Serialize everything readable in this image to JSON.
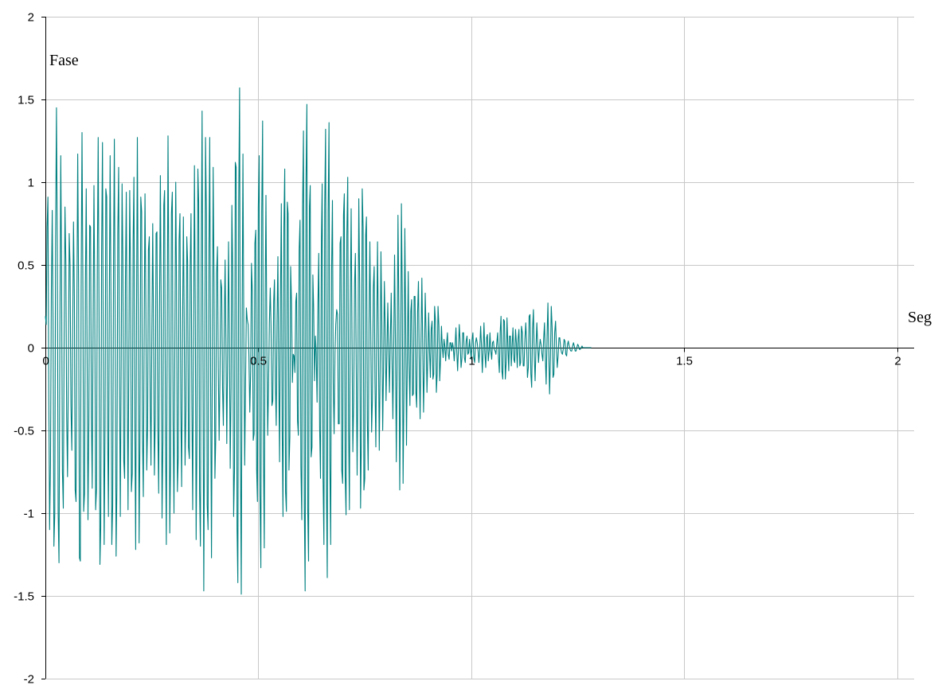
{
  "chart_data": {
    "type": "line",
    "title": "",
    "xlabel": "Seg",
    "ylabel": "Fase",
    "xlim": [
      0,
      2.04
    ],
    "ylim": [
      -2,
      2
    ],
    "x_ticks": [
      0,
      0.5,
      1,
      1.5,
      2
    ],
    "x_tick_labels": [
      "0",
      "0.5",
      "1",
      "1.5",
      "2"
    ],
    "y_ticks": [
      2,
      1.5,
      1,
      0.5,
      0,
      -0.5,
      -1,
      -1.5,
      -2
    ],
    "y_tick_labels": [
      "2",
      "1.5",
      "1",
      "0.5",
      "0",
      "-0.5",
      "-1",
      "-1.5",
      "-2"
    ],
    "grid": true,
    "legend": "none",
    "series": [
      {
        "color": "#008080",
        "x_start": 0,
        "x_step": 0.002,
        "y": [
          0.19,
          0.14,
          0.73,
          0.91,
          -0.3,
          -1.1,
          -0.7,
          0.34,
          0.83,
          0.16,
          -1.2,
          -1.0,
          0.65,
          1.45,
          0.57,
          -0.99,
          -1.3,
          0.06,
          1.16,
          0.49,
          -0.75,
          -0.97,
          -0.01,
          0.85,
          0.51,
          -0.41,
          -0.78,
          -0.13,
          0.69,
          0.5,
          -0.35,
          -0.62,
          0.05,
          0.76,
          0.31,
          -0.86,
          -0.93,
          0.3,
          1.17,
          0.37,
          -1.27,
          -1.29,
          0.36,
          1.3,
          0.36,
          -0.99,
          -0.88,
          0.4,
          0.96,
          -0.04,
          -1.04,
          -0.44,
          0.74,
          0.73,
          -0.42,
          -0.85,
          0.13,
          0.98,
          0.28,
          -0.98,
          -0.86,
          0.47,
          1.27,
          0.19,
          -1.31,
          -1.09,
          0.56,
          1.24,
          -0.01,
          -1.19,
          -0.48,
          0.96,
          0.91,
          -0.49,
          -1.02,
          0.19,
          1.16,
          0.26,
          -1.19,
          -0.96,
          0.54,
          1.26,
          0.07,
          -1.26,
          -0.84,
          0.69,
          1.09,
          -0.24,
          -1.02,
          -0.07,
          0.99,
          0.54,
          -0.68,
          -0.79,
          0.4,
          0.94,
          -0.17,
          -0.98,
          -0.07,
          0.95,
          0.42,
          -0.87,
          -0.76,
          0.65,
          1.03,
          -0.43,
          -1.22,
          0.15,
          1.27,
          0.2,
          -1.18,
          -0.58,
          0.91,
          0.82,
          -0.51,
          -0.9,
          0.14,
          0.93,
          0.25,
          -0.74,
          -0.47,
          0.59,
          0.67,
          -0.31,
          -0.71,
          0.07,
          0.75,
          0.15,
          -0.77,
          -0.42,
          0.69,
          0.7,
          -0.48,
          -0.88,
          0.22,
          1.04,
          0.17,
          -1.03,
          -0.56,
          0.86,
          0.95,
          -0.51,
          -1.19,
          0.09,
          1.28,
          0.33,
          -1.12,
          -0.71,
          0.81,
          0.94,
          -0.44,
          -1.0,
          0.04,
          1.0,
          0.36,
          -0.87,
          -0.66,
          0.65,
          0.81,
          -0.37,
          -0.84,
          0.09,
          0.79,
          0.18,
          -0.71,
          -0.38,
          0.67,
          0.52,
          -0.6,
          -0.67,
          0.48,
          0.81,
          -0.35,
          -0.98,
          0.13,
          1.1,
          0.16,
          -1.16,
          -0.51,
          1.08,
          0.88,
          -0.86,
          -1.2,
          0.52,
          1.43,
          -0.07,
          -1.47,
          -0.41,
          1.27,
          0.81,
          -0.95,
          -1.1,
          0.58,
          1.27,
          -0.2,
          -1.27,
          -0.13,
          1.09,
          0.39,
          -0.79,
          -0.56,
          0.45,
          0.61,
          -0.11,
          -0.56,
          -0.17,
          0.41,
          0.36,
          -0.25,
          -0.47,
          0.11,
          0.53,
          -0.02,
          -0.58,
          -0.04,
          0.64,
          0.11,
          -0.73,
          -0.24,
          0.86,
          0.44,
          -1.02,
          -0.74,
          1.12,
          1.09,
          -1.09,
          -1.42,
          0.89,
          1.57,
          -0.57,
          -1.49,
          0.21,
          1.17,
          0.07,
          -0.71,
          -0.2,
          0.24,
          0.17,
          0.14,
          -0.05,
          -0.39,
          -0.14,
          0.51,
          0.34,
          -0.56,
          -0.52,
          0.63,
          0.71,
          -0.74,
          -0.93,
          0.85,
          1.16,
          -0.89,
          -1.33,
          0.82,
          1.37,
          -0.6,
          -1.21,
          0.29,
          0.92,
          0.02,
          -0.53,
          -0.25,
          0.15,
          0.36,
          0.13,
          -0.35,
          -0.32,
          0.28,
          0.41,
          -0.2,
          -0.47,
          0.15,
          0.55,
          -0.18,
          -0.69,
          0.3,
          0.87,
          -0.5,
          -1.02,
          0.73,
          1.08,
          -0.87,
          -0.99,
          0.88,
          0.81,
          -0.74,
          -0.54,
          0.49,
          0.27,
          -0.21,
          -0.04,
          -0.05,
          -0.15,
          0.28,
          0.33,
          -0.44,
          -0.53,
          0.59,
          0.77,
          -0.72,
          -1.04,
          0.85,
          1.31,
          -0.96,
          -1.47,
          1.01,
          1.47,
          -0.97,
          -1.29,
          0.85,
          0.98,
          -0.66,
          -0.6,
          0.44,
          0.24,
          -0.2,
          0.07,
          -0.03,
          -0.33,
          0.27,
          0.57,
          -0.48,
          -0.79,
          0.64,
          0.99,
          -0.78,
          -1.19,
          0.86,
          1.32,
          -0.87,
          -1.39,
          0.82,
          1.36,
          -0.68,
          -1.19,
          0.46,
          0.89,
          -0.21,
          -0.52,
          -0.03,
          0.14,
          0.23,
          0.2,
          -0.46,
          -0.46,
          0.63,
          0.67,
          -0.74,
          -0.82,
          0.8,
          0.93,
          -0.78,
          -1.01,
          0.68,
          1.03,
          -0.49,
          -0.98,
          0.24,
          0.84,
          0.04,
          -0.63,
          -0.32,
          0.39,
          0.57,
          -0.12,
          -0.77,
          -0.14,
          0.9,
          0.38,
          -0.97,
          -0.58,
          0.96,
          0.73,
          -0.86,
          -0.79,
          0.68,
          0.79,
          -0.44,
          -0.74,
          0.17,
          0.64,
          0.09,
          -0.51,
          -0.31,
          0.36,
          0.49,
          -0.21,
          -0.6,
          0.07,
          0.64,
          0.05,
          -0.62,
          -0.13,
          0.58,
          0.16,
          -0.5,
          -0.14,
          0.4,
          0.1,
          -0.32,
          -0.04,
          0.27,
          -0.01,
          -0.27,
          0.05,
          0.33,
          -0.06,
          -0.43,
          0.03,
          0.56,
          0.03,
          -0.69,
          -0.12,
          0.8,
          0.22,
          -0.86,
          -0.29,
          0.87,
          0.31,
          -0.82,
          -0.27,
          0.72,
          0.17,
          -0.59,
          -0.04,
          0.46,
          -0.1,
          -0.35,
          0.22,
          0.29,
          -0.29,
          -0.28,
          0.31,
          0.31,
          -0.27,
          -0.36,
          0.21,
          0.4,
          -0.12,
          -0.43,
          0.03,
          0.42,
          0.04,
          -0.39,
          -0.09,
          0.33,
          0.09,
          -0.27,
          -0.05,
          0.21,
          -0.02,
          -0.18,
          0.11,
          0.16,
          -0.19,
          -0.16,
          0.25,
          0.16,
          -0.27,
          -0.16,
          0.25,
          0.13,
          -0.2,
          -0.07,
          0.13,
          0.01,
          -0.06,
          0.05,
          0.01,
          -0.08,
          0.02,
          0.09,
          -0.04,
          -0.07,
          0.03,
          0.03,
          -0.02,
          0.03,
          0.0,
          -0.08,
          0.01,
          0.12,
          -0.02,
          -0.14,
          0.0,
          0.14,
          0.03,
          -0.12,
          -0.07,
          0.09,
          0.09,
          -0.06,
          -0.09,
          0.04,
          0.07,
          -0.04,
          -0.03,
          0.05,
          -0.01,
          -0.07,
          0.05,
          0.09,
          -0.06,
          -0.09,
          0.03,
          0.06,
          0.03,
          -0.02,
          -0.09,
          -0.01,
          0.13,
          0.02,
          -0.15,
          -0.01,
          0.15,
          -0.03,
          -0.12,
          0.06,
          0.08,
          -0.08,
          -0.02,
          0.09,
          -0.02,
          -0.07,
          0.03,
          0.04,
          -0.01,
          -0.02,
          -0.04,
          0.03,
          0.09,
          -0.06,
          -0.15,
          0.1,
          0.19,
          -0.14,
          -0.19,
          0.17,
          0.16,
          -0.19,
          -0.09,
          0.18,
          0.01,
          -0.14,
          0.07,
          0.07,
          -0.11,
          0.01,
          0.12,
          -0.07,
          -0.09,
          0.11,
          0.03,
          -0.12,
          0.05,
          0.11,
          -0.11,
          -0.09,
          0.13,
          0.09,
          -0.11,
          -0.11,
          0.05,
          0.15,
          0.03,
          -0.18,
          -0.12,
          0.19,
          0.2,
          -0.16,
          -0.24,
          0.11,
          0.23,
          -0.05,
          -0.2,
          0.0,
          0.15,
          0.02,
          -0.09,
          0.0,
          0.05,
          0.02,
          -0.04,
          -0.08,
          0.05,
          0.15,
          -0.07,
          -0.22,
          0.06,
          0.27,
          -0.02,
          -0.28,
          -0.05,
          0.25,
          0.12,
          -0.18,
          -0.16,
          0.09,
          0.16,
          0.0,
          -0.12,
          -0.05,
          0.06,
          0.06,
          0.0,
          -0.03,
          -0.04,
          -0.01,
          0.05,
          0.04,
          -0.04,
          -0.05,
          0.02,
          0.04,
          0.01,
          -0.01,
          -0.02,
          -0.02,
          0.01,
          0.03,
          0.01,
          -0.02,
          -0.02,
          0.0,
          0.02,
          0.01,
          -0.01,
          -0.01,
          0.0,
          0.01,
          0.0,
          0.0,
          0.0,
          0.0,
          0.0,
          0.0,
          0.0,
          0.0,
          0.0,
          0.0,
          0.0
        ]
      }
    ]
  }
}
